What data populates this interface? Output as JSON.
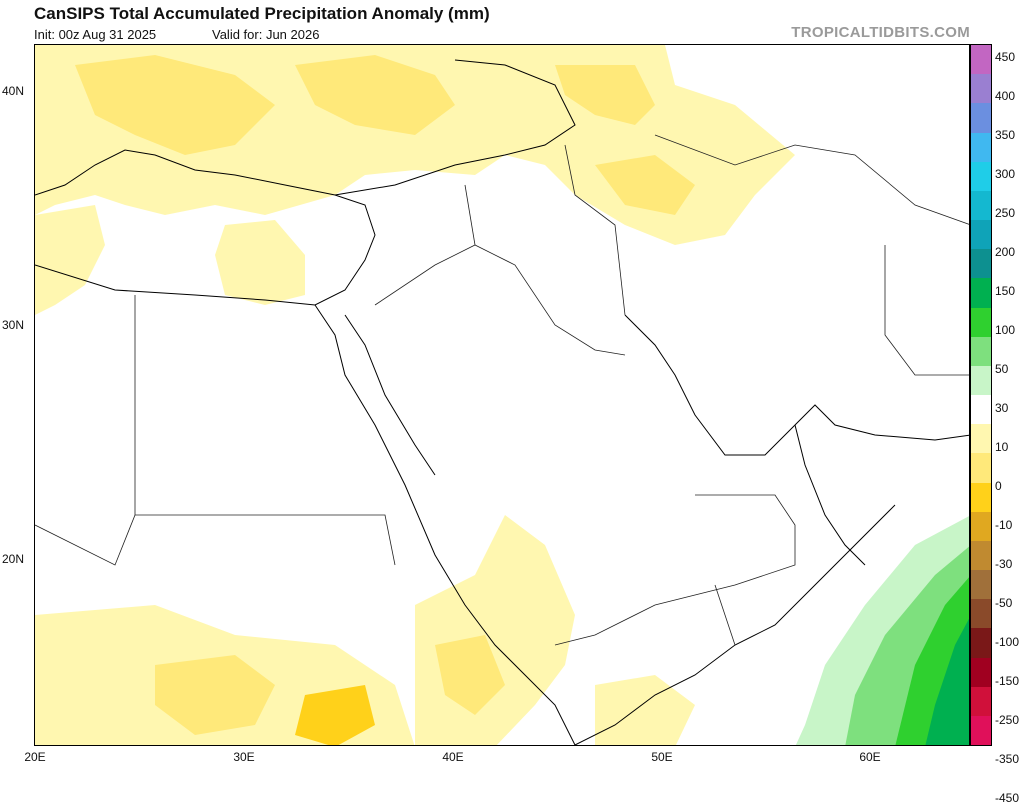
{
  "title": "CanSIPS Total Accumulated Precipitation Anomaly (mm)",
  "init_text": "Init: 00z Aug 31 2025",
  "valid_text": "Valid for: Jun 2026",
  "brand": "TROPICALTIDBITS.COM",
  "lat_labels": [
    "40N",
    "30N",
    "20N"
  ],
  "lon_labels": [
    "20E",
    "30E",
    "40E",
    "50E",
    "60E"
  ],
  "colorbar": {
    "labels": [
      "450",
      "400",
      "350",
      "300",
      "250",
      "200",
      "150",
      "100",
      "50",
      "30",
      "10",
      "0",
      "-10",
      "-30",
      "-50",
      "-100",
      "-150",
      "-250",
      "-350",
      "-450"
    ],
    "colors": [
      "#c266c2",
      "#9a7fd1",
      "#6b8fe0",
      "#40b8f0",
      "#1fcde8",
      "#14b8d0",
      "#0fa3b8",
      "#0d9090",
      "#00b050",
      "#2fd02f",
      "#7ee07e",
      "#c8f5c8",
      "#ffffff",
      "#fff7b0",
      "#ffe97a",
      "#ffd11a",
      "#e0a820",
      "#c08a30",
      "#a0703a",
      "#8a4a2a",
      "#7a1818",
      "#a00020",
      "#d0103a",
      "#e0105a"
    ]
  },
  "icons": {
    "map": "geographic-map",
    "colorbar": "precip-anomaly-colorbar"
  }
}
